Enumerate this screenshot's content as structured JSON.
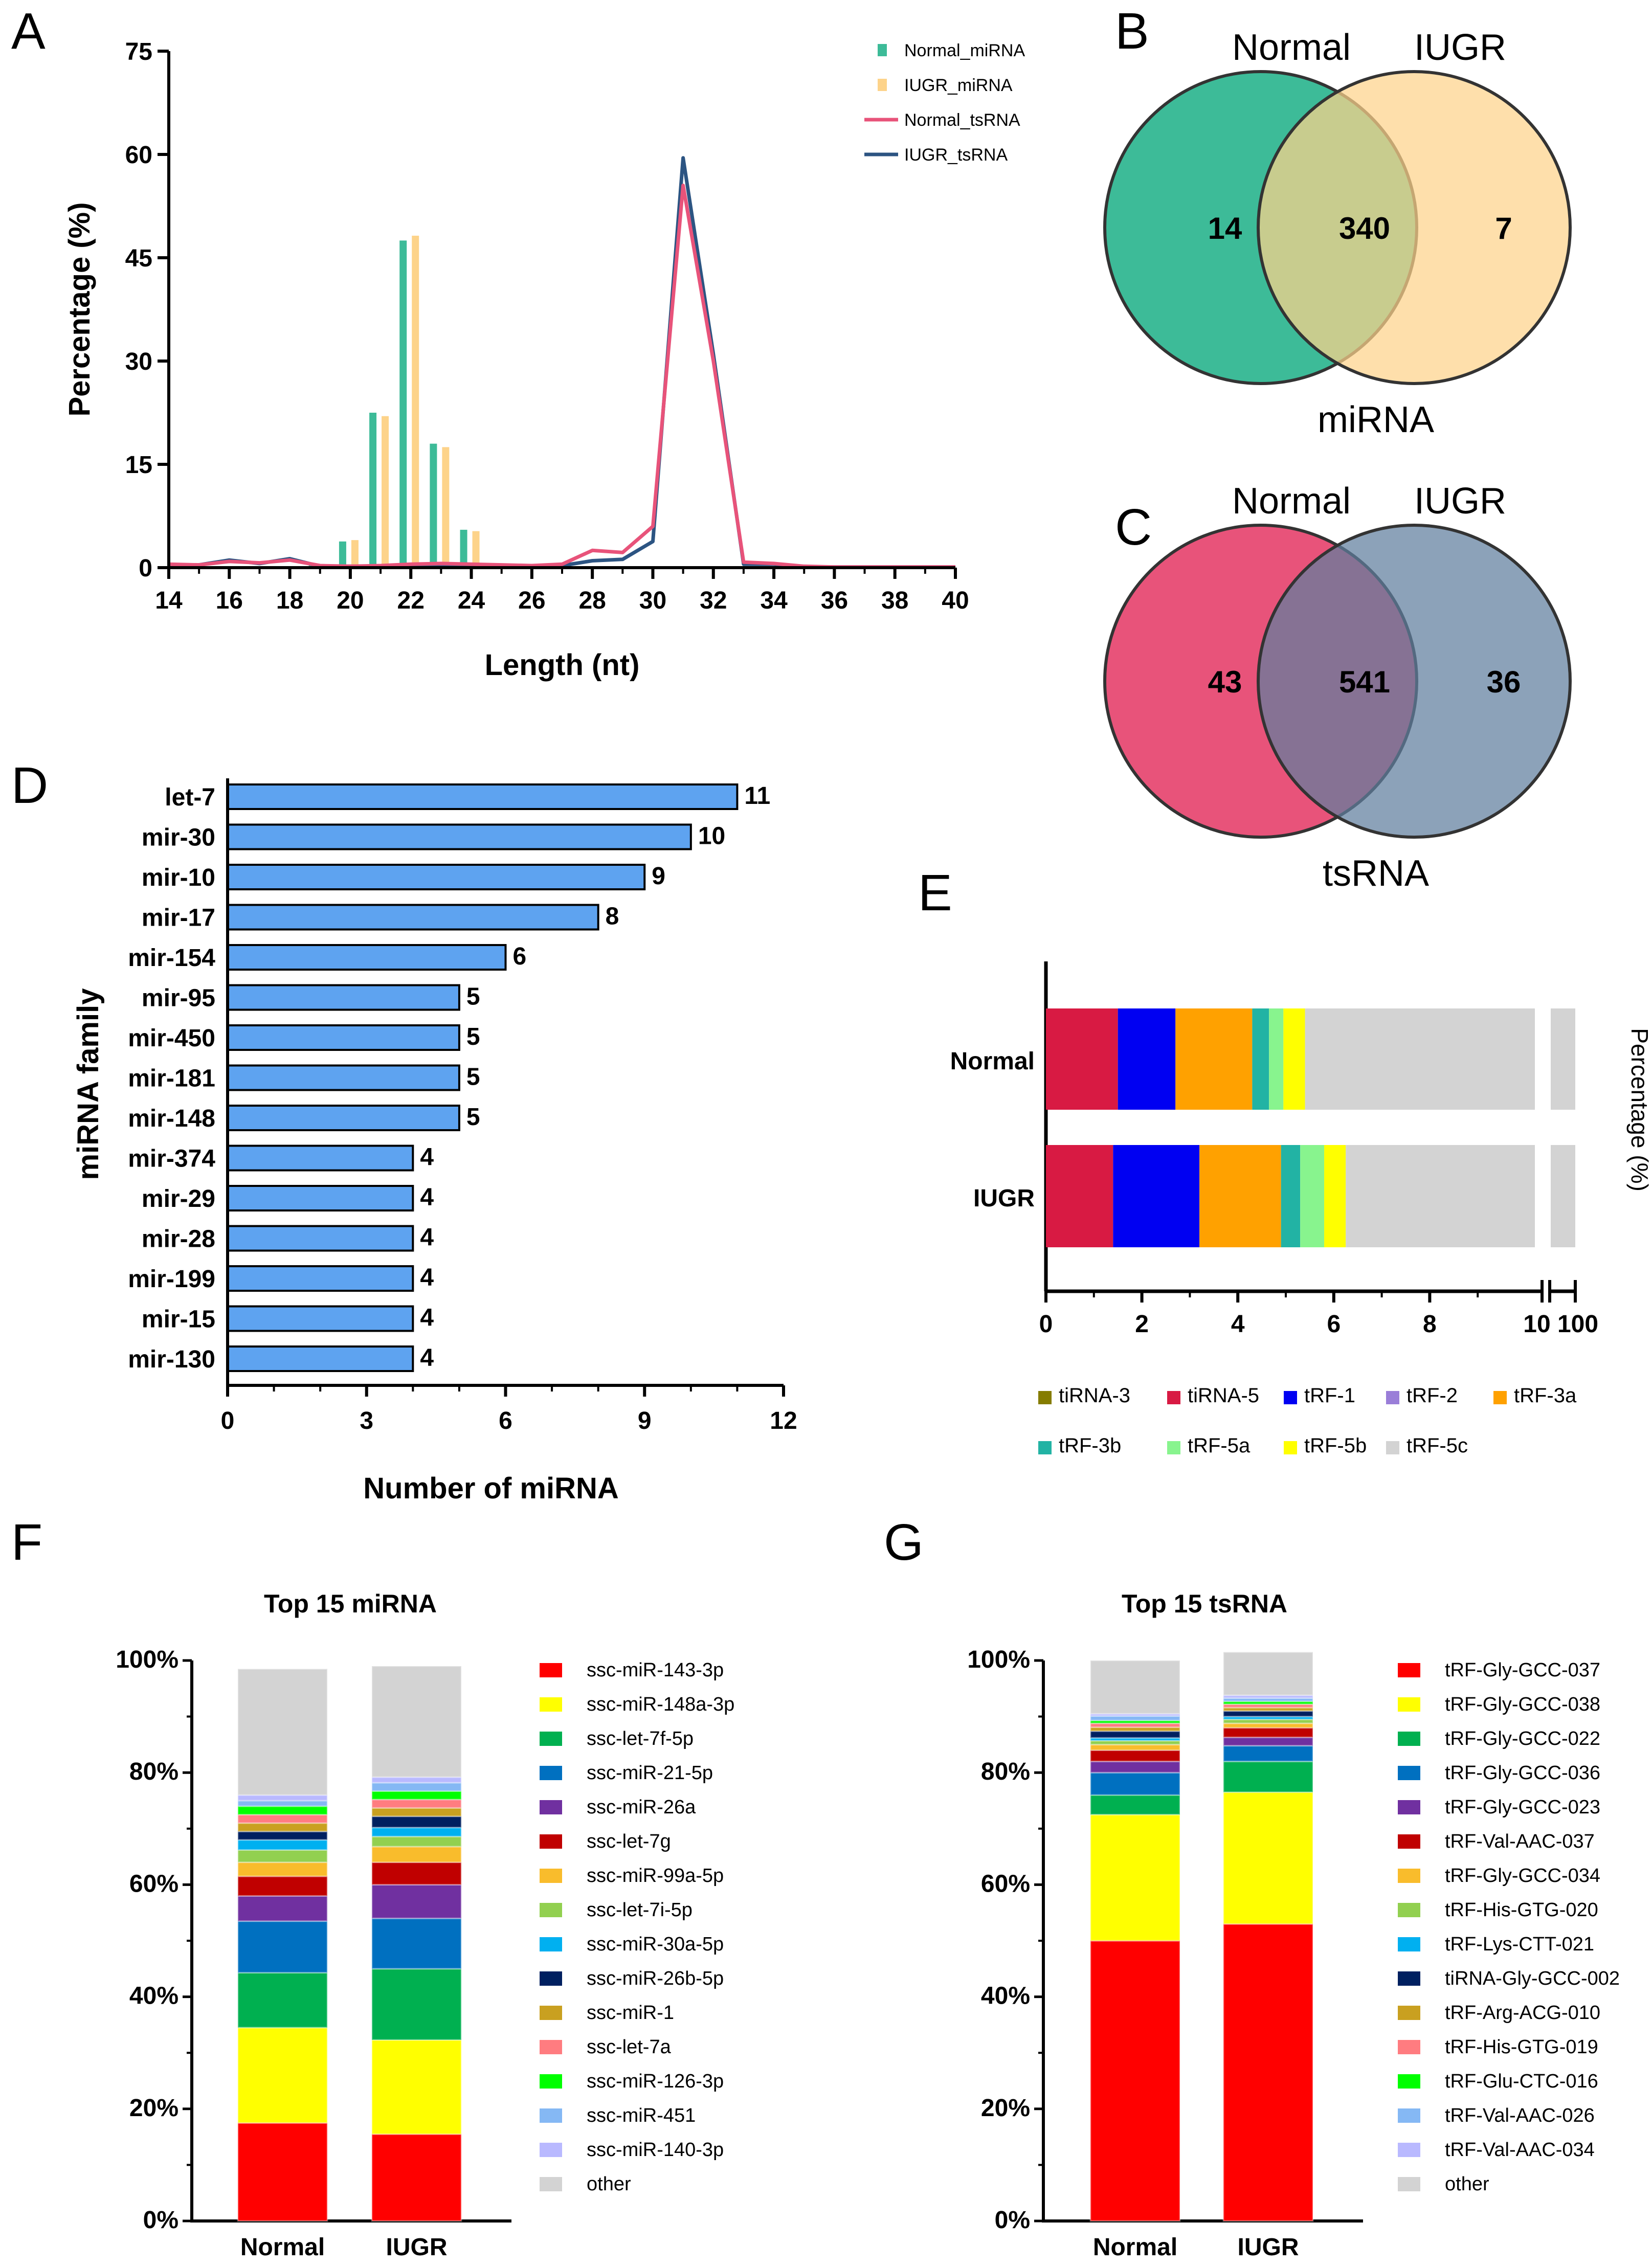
{
  "chart_data": [
    {
      "panel": "A",
      "type": "bar+line",
      "xlabel": "Length (nt)",
      "ylabel": "Percentage (%)",
      "xlim": [
        14,
        40
      ],
      "ylim": [
        0,
        75
      ],
      "xticks": [
        "14",
        "16",
        "18",
        "20",
        "22",
        "24",
        "26",
        "28",
        "30",
        "32",
        "34",
        "36",
        "38",
        "40"
      ],
      "yticks": [
        "0",
        "15",
        "30",
        "45",
        "60",
        "75"
      ],
      "legend": [
        "Normal_miRNA",
        "IUGR_miRNA",
        "Normal_tsRNA",
        "IUGR_tsRNA"
      ],
      "colors": {
        "normal_mirna": "#3dbb98",
        "iugr_mirna": "#fdd38a",
        "normal_tsrna": "#e8537a",
        "iugr_tsrna": "#2c5482"
      },
      "bars": {
        "x": [
          19,
          20,
          21,
          22,
          23,
          24,
          25,
          26
        ],
        "normal_miRNA": [
          0.5,
          3.8,
          22.5,
          47.5,
          18.0,
          5.5,
          0.2,
          0.1
        ],
        "iugr_miRNA": [
          0.4,
          4.0,
          22.0,
          48.2,
          17.5,
          5.3,
          0.2,
          0.1
        ]
      },
      "lines": {
        "x": [
          14,
          15,
          16,
          17,
          18,
          19,
          20,
          21,
          22,
          23,
          24,
          25,
          26,
          27,
          28,
          29,
          30,
          31,
          32,
          33,
          34,
          35,
          36,
          37,
          38,
          39,
          40
        ],
        "normal_tsRNA": [
          0.5,
          0.4,
          0.9,
          0.7,
          1.1,
          0.3,
          0.2,
          0.3,
          0.5,
          0.6,
          0.5,
          0.4,
          0.3,
          0.5,
          2.5,
          2.2,
          6.0,
          55.5,
          30.0,
          0.8,
          0.6,
          0.2,
          0.1,
          0.1,
          0.1,
          0.1,
          0.1
        ],
        "iugr_tsRNA": [
          0.4,
          0.4,
          1.1,
          0.6,
          1.3,
          0.2,
          0.2,
          0.2,
          0.3,
          0.4,
          0.3,
          0.2,
          0.2,
          0.3,
          1.0,
          1.2,
          3.8,
          59.5,
          31.0,
          0.5,
          0.5,
          0.1,
          0.1,
          0.1,
          0.1,
          0.1,
          0.1
        ]
      }
    },
    {
      "panel": "B",
      "type": "venn",
      "title": "miRNA",
      "sets": [
        "Normal",
        "IUGR"
      ],
      "only_a": "14",
      "both": "340",
      "only_b": "7",
      "colors": [
        "#3dbb98",
        "#fdd38a"
      ]
    },
    {
      "panel": "C",
      "type": "venn",
      "title": "tsRNA",
      "sets": [
        "Normal",
        "IUGR"
      ],
      "only_a": "43",
      "both": "541",
      "only_b": "36",
      "colors": [
        "#e8537a",
        "#5f7e9e"
      ]
    },
    {
      "panel": "D",
      "type": "bar",
      "orientation": "horizontal",
      "xlabel": "Number of miRNA",
      "ylabel": "miRNA family",
      "xlim": [
        0,
        12
      ],
      "xticks": [
        "0",
        "3",
        "6",
        "9",
        "12"
      ],
      "color": "#5ea3f0",
      "categories": [
        "let-7",
        "mir-30",
        "mir-10",
        "mir-17",
        "mir-154",
        "mir-95",
        "mir-450",
        "mir-181",
        "mir-148",
        "mir-374",
        "mir-29",
        "mir-28",
        "mir-199",
        "mir-15",
        "mir-130"
      ],
      "values": [
        11,
        10,
        9,
        8,
        6,
        5,
        5,
        5,
        5,
        4,
        4,
        4,
        4,
        4,
        4
      ]
    },
    {
      "panel": "E",
      "type": "bar",
      "orientation": "horizontal",
      "stacked": true,
      "ylabel": "Percentage (%)",
      "xticks": [
        "0",
        "2",
        "4",
        "6",
        "8",
        "10",
        "100"
      ],
      "categories": [
        "Normal",
        "IUGR"
      ],
      "series": [
        {
          "name": "tiRNA-3",
          "color": "#857c00",
          "values": [
            0.0,
            0.0
          ]
        },
        {
          "name": "tiRNA-5",
          "color": "#d81a43",
          "values": [
            1.5,
            1.4
          ]
        },
        {
          "name": "tRF-1",
          "color": "#0000f2",
          "values": [
            1.2,
            1.8
          ]
        },
        {
          "name": "tRF-2",
          "color": "#9a7ed8",
          "values": [
            0.0,
            0.0
          ]
        },
        {
          "name": "tRF-3a",
          "color": "#ffa100",
          "values": [
            1.6,
            1.7
          ]
        },
        {
          "name": "tRF-3b",
          "color": "#22b3a4",
          "values": [
            0.35,
            0.4
          ]
        },
        {
          "name": "tRF-5a",
          "color": "#88f48e",
          "values": [
            0.3,
            0.5
          ]
        },
        {
          "name": "tRF-5b",
          "color": "#ffff00",
          "values": [
            0.45,
            0.45
          ]
        },
        {
          "name": "tRF-5c",
          "color": "#d3d3d3",
          "values": [
            92.6,
            91.75
          ]
        }
      ]
    },
    {
      "panel": "F",
      "type": "bar",
      "stacked": true,
      "title": "Top 15 miRNA",
      "yticks": [
        "0%",
        "20%",
        "40%",
        "60%",
        "80%",
        "100%"
      ],
      "categories": [
        "Normal",
        "IUGR"
      ],
      "series": [
        {
          "name": "ssc-miR-143-3p",
          "color": "#ff0000",
          "values": [
            17.5,
            15.5
          ]
        },
        {
          "name": "ssc-miR-148a-3p",
          "color": "#ffff00",
          "values": [
            17.0,
            16.8
          ]
        },
        {
          "name": "ssc-let-7f-5p",
          "color": "#00b050",
          "values": [
            9.8,
            12.7
          ]
        },
        {
          "name": "ssc-miR-21-5p",
          "color": "#0070c0",
          "values": [
            9.2,
            9.0
          ]
        },
        {
          "name": "ssc-miR-26a",
          "color": "#7030a0",
          "values": [
            4.5,
            6.0
          ]
        },
        {
          "name": "ssc-let-7g",
          "color": "#c00000",
          "values": [
            3.5,
            4.0
          ]
        },
        {
          "name": "ssc-miR-99a-5p",
          "color": "#f9bc2c",
          "values": [
            2.5,
            2.8
          ]
        },
        {
          "name": "ssc-let-7i-5p",
          "color": "#92d050",
          "values": [
            2.2,
            1.8
          ]
        },
        {
          "name": "ssc-miR-30a-5p",
          "color": "#00b0f0",
          "values": [
            1.8,
            1.6
          ]
        },
        {
          "name": "ssc-miR-26b-5p",
          "color": "#002060",
          "values": [
            1.5,
            2.0
          ]
        },
        {
          "name": "ssc-miR-1",
          "color": "#c9a020",
          "values": [
            1.5,
            1.5
          ]
        },
        {
          "name": "ssc-let-7a",
          "color": "#ff7c80",
          "values": [
            1.5,
            1.5
          ]
        },
        {
          "name": "ssc-miR-126-3p",
          "color": "#00ff00",
          "values": [
            1.5,
            1.5
          ]
        },
        {
          "name": "ssc-miR-451",
          "color": "#85b8f4",
          "values": [
            1.0,
            1.5
          ]
        },
        {
          "name": "ssc-miR-140-3p",
          "color": "#b9b9ff",
          "values": [
            1.0,
            1.0
          ]
        },
        {
          "name": "other",
          "color": "#d3d3d3",
          "values": [
            22.5,
            19.8
          ]
        }
      ]
    },
    {
      "panel": "G",
      "type": "bar",
      "stacked": true,
      "title": "Top 15 tsRNA",
      "yticks": [
        "0%",
        "20%",
        "40%",
        "60%",
        "80%",
        "100%"
      ],
      "categories": [
        "Normal",
        "IUGR"
      ],
      "series": [
        {
          "name": "tRF-Gly-GCC-037",
          "color": "#ff0000",
          "values": [
            50.0,
            53.0
          ]
        },
        {
          "name": "tRF-Gly-GCC-038",
          "color": "#ffff00",
          "values": [
            22.5,
            23.5
          ]
        },
        {
          "name": "tRF-Gly-GCC-022",
          "color": "#00b050",
          "values": [
            3.5,
            5.5
          ]
        },
        {
          "name": "tRF-Gly-GCC-036",
          "color": "#0070c0",
          "values": [
            4.0,
            2.8
          ]
        },
        {
          "name": "tRF-Gly-GCC-023",
          "color": "#7030a0",
          "values": [
            2.0,
            1.5
          ]
        },
        {
          "name": "tRF-Val-AAC-037",
          "color": "#c00000",
          "values": [
            2.0,
            1.7
          ]
        },
        {
          "name": "tRF-Gly-GCC-034",
          "color": "#f9bc2c",
          "values": [
            1.0,
            0.8
          ]
        },
        {
          "name": "tRF-His-GTG-020",
          "color": "#92d050",
          "values": [
            0.7,
            0.7
          ]
        },
        {
          "name": "tRF-Lys-CTT-021",
          "color": "#00b0f0",
          "values": [
            0.5,
            0.5
          ]
        },
        {
          "name": "tiRNA-Gly-GCC-002",
          "color": "#002060",
          "values": [
            1.2,
            1.0
          ]
        },
        {
          "name": "tRF-Arg-ACG-010",
          "color": "#c9a020",
          "values": [
            0.7,
            0.6
          ]
        },
        {
          "name": "tRF-His-GTG-019",
          "color": "#ff7c80",
          "values": [
            0.7,
            0.6
          ]
        },
        {
          "name": "tRF-Glu-CTC-016",
          "color": "#00ff00",
          "values": [
            0.5,
            0.5
          ]
        },
        {
          "name": "tRF-Val-AAC-026",
          "color": "#85b8f4",
          "values": [
            0.8,
            0.6
          ]
        },
        {
          "name": "tRF-Val-AAC-034",
          "color": "#b9b9ff",
          "values": [
            0.4,
            0.5
          ]
        },
        {
          "name": "other",
          "color": "#d3d3d3",
          "values": [
            9.5,
            7.7
          ]
        }
      ]
    }
  ],
  "panel_labels": [
    "A",
    "B",
    "C",
    "D",
    "E",
    "F",
    "G"
  ]
}
